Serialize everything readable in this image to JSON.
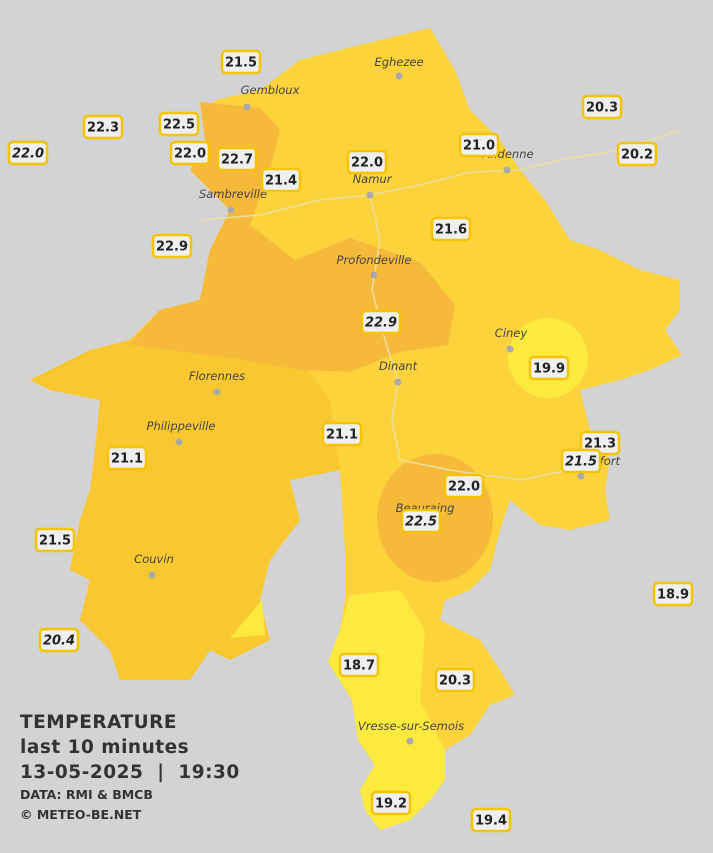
{
  "legend": {
    "title": "TEMPERATURE",
    "period": "last 10 minutes",
    "datetime": "13-05-2025  |  19:30",
    "source": "DATA: RMI & BMCB",
    "copyright": "© METEO-BE.NET"
  },
  "cities": [
    "Eghezee",
    "Gembloux",
    "Andenne",
    "Namur",
    "Sambreville",
    "Profondeville",
    "Ciney",
    "Dinant",
    "Florennes",
    "Philippeville",
    "Rochefort",
    "Beauraing",
    "Couvin",
    "Vresse-sur-Semois"
  ],
  "stations": [
    {
      "label": "21.5"
    },
    {
      "label": "22.3"
    },
    {
      "label": "22.5"
    },
    {
      "label": "22.0",
      "italic": true
    },
    {
      "label": "22.0"
    },
    {
      "label": "22.7"
    },
    {
      "label": "22.0"
    },
    {
      "label": "21.0"
    },
    {
      "label": "20.3"
    },
    {
      "label": "20.2"
    },
    {
      "label": "21.4"
    },
    {
      "label": "22.9"
    },
    {
      "label": "21.6"
    },
    {
      "label": "22.9",
      "italic": true
    },
    {
      "label": "19.9"
    },
    {
      "label": "21.1"
    },
    {
      "label": "21.1"
    },
    {
      "label": "21.3"
    },
    {
      "label": "21.5",
      "italic": true
    },
    {
      "label": "22.0"
    },
    {
      "label": "22.5",
      "italic": true
    },
    {
      "label": "21.5"
    },
    {
      "label": "18.9"
    },
    {
      "label": "20.4",
      "italic": true
    },
    {
      "label": "18.7"
    },
    {
      "label": "20.3"
    },
    {
      "label": "19.2"
    },
    {
      "label": "19.4"
    }
  ]
}
